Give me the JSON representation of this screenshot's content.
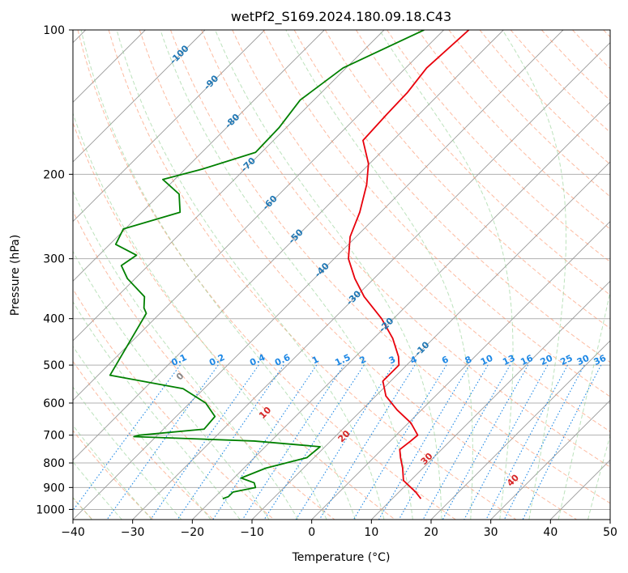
{
  "chart_data": {
    "type": "line",
    "title": "wetPf2_S169.2024.180.09.18.C43",
    "xlabel": "Temperature (°C)",
    "ylabel": "Pressure (hPa)",
    "xlim": [
      -40,
      50
    ],
    "ylim": [
      1050,
      100
    ],
    "y_scale": "log",
    "grid": true,
    "x_ticks": [
      -40,
      -30,
      -20,
      -10,
      0,
      10,
      20,
      30,
      40,
      50
    ],
    "y_ticks": [
      100,
      200,
      300,
      400,
      500,
      600,
      700,
      800,
      900,
      1000
    ],
    "colors": {
      "temperature": "#e8000b",
      "dewpoint": "#008000",
      "dry_adiabat": "#fc8d62",
      "moist_adiabat": "#8fce8f",
      "mixing_ratio": "#1e88e5",
      "isotherm": "#999999",
      "dry_label": "#d62728",
      "moist_label": "#1f77b4",
      "mix_label": "#1e88e5"
    },
    "series": [
      {
        "key": "temperature",
        "p": [
          100,
          120,
          135,
          150,
          170,
          190,
          210,
          240,
          270,
          300,
          330,
          360,
          400,
          440,
          480,
          500,
          540,
          580,
          620,
          660,
          700,
          720,
          750,
          780,
          820,
          870,
          920,
          950
        ],
        "t": [
          -55.8,
          -56.5,
          -55.6,
          -55.4,
          -55,
          -50.2,
          -47,
          -43.5,
          -41,
          -37.6,
          -33.2,
          -28.6,
          -22,
          -16.8,
          -12.8,
          -11.3,
          -11.3,
          -8.3,
          -4.1,
          0.4,
          3.6,
          3.4,
          3,
          4.5,
          6.6,
          8.8,
          12.8,
          14.8
        ]
      },
      {
        "key": "dewpoint",
        "p": [
          100,
          120,
          140,
          160,
          180,
          195,
          205,
          220,
          240,
          260,
          280,
          295,
          310,
          330,
          360,
          380,
          390,
          525,
          560,
          600,
          640,
          680,
          700,
          705,
          720,
          740,
          780,
          820,
          860,
          880,
          900,
          920,
          940,
          950
        ],
        "t": [
          -63.3,
          -70.5,
          -72.3,
          -71.2,
          -71,
          -77.1,
          -82,
          -76.8,
          -73.6,
          -80.3,
          -79,
          -73.7,
          -74.5,
          -71.3,
          -65.4,
          -63.6,
          -62.3,
          -58,
          -43.5,
          -37.3,
          -33.5,
          -33.2,
          -43,
          -43.7,
          -22.8,
          -10.8,
          -11.2,
          -16.3,
          -18.8,
          -15.8,
          -14.8,
          -17.8,
          -17.8,
          -18.4
        ]
      }
    ],
    "dry_adiabat_labels": [
      {
        "label": "0",
        "p": 525
      },
      {
        "label": "10",
        "p": 625
      },
      {
        "label": "20",
        "p": 700
      },
      {
        "label": "30",
        "p": 780
      },
      {
        "label": "40",
        "p": 865
      }
    ],
    "moist_adiabat_labels": [
      {
        "label": "-100",
        "p": 112
      },
      {
        "label": "-90",
        "p": 128
      },
      {
        "label": "-80",
        "p": 154
      },
      {
        "label": "-70",
        "p": 190
      },
      {
        "label": "-60",
        "p": 228
      },
      {
        "label": "-50",
        "p": 268
      },
      {
        "label": "-40",
        "p": 315
      },
      {
        "label": "-30",
        "p": 360
      },
      {
        "label": "-20",
        "p": 410
      },
      {
        "label": "-10",
        "p": 460
      }
    ],
    "mixing_ratio_labels": [
      "0.1",
      "0.2",
      "0.4",
      "0.6",
      "1",
      "1.5",
      "2",
      "3",
      "4",
      "6",
      "8",
      "10",
      "13",
      "16",
      "20",
      "25",
      "30",
      "36"
    ],
    "mixing_ratio_label_p": 500
  }
}
